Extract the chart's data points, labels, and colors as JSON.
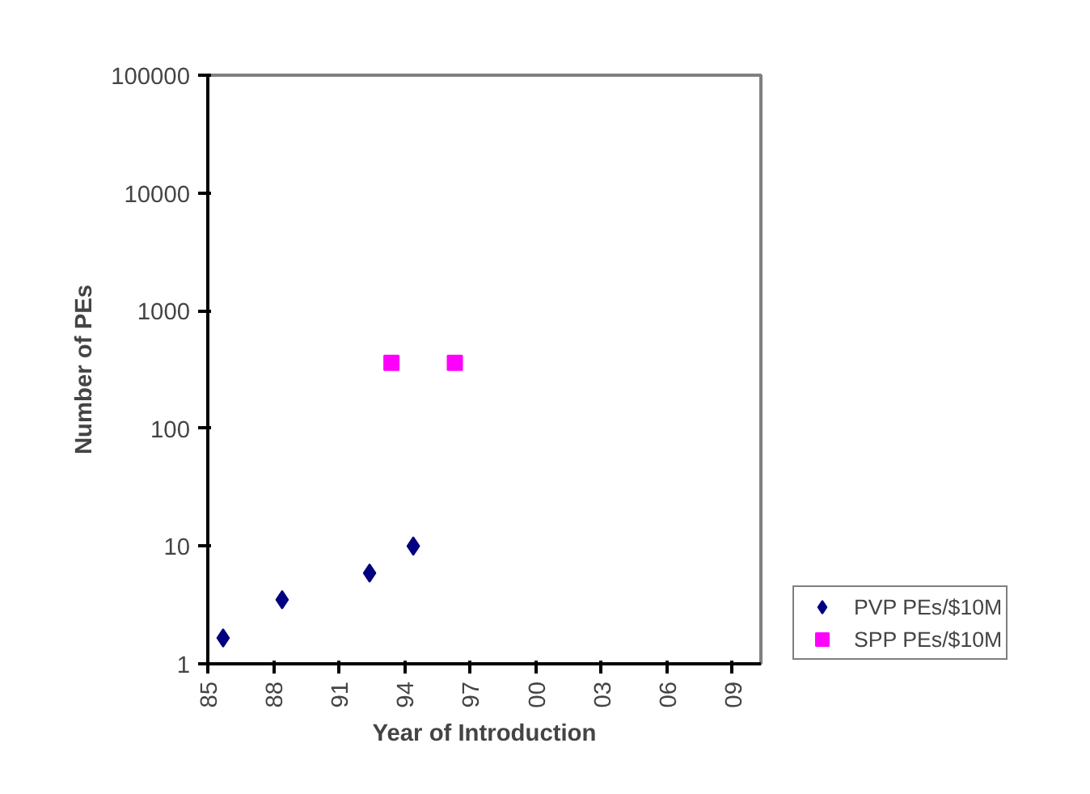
{
  "chart_data": {
    "type": "scatter",
    "xlabel": "Year of Introduction",
    "ylabel": "Number of PEs",
    "log": "y",
    "grid": false,
    "legend": "bottom right",
    "xlim": [
      1985,
      2010.3
    ],
    "ylim": [
      1,
      100000
    ],
    "xticks": [
      {
        "value": 1985,
        "label": "85"
      },
      {
        "value": 1988,
        "label": "88"
      },
      {
        "value": 1991,
        "label": "91"
      },
      {
        "value": 1994,
        "label": "94"
      },
      {
        "value": 1997,
        "label": "97"
      },
      {
        "value": 2000,
        "label": "00"
      },
      {
        "value": 2003,
        "label": "03"
      },
      {
        "value": 2006,
        "label": "06"
      },
      {
        "value": 2009,
        "label": "09"
      }
    ],
    "yticks": [
      1,
      10,
      100,
      1000,
      10000,
      100000
    ],
    "series": [
      {
        "name": "PVP PEs/$10M",
        "color": "#000080",
        "marker": "diamond",
        "x": [
          1985.7,
          1988.4,
          1992.4,
          1994.4
        ],
        "values": [
          1.66,
          3.5,
          5.9,
          10
        ]
      },
      {
        "name": "SPP PEs/$10M",
        "color": "#ff00ff",
        "marker": "square",
        "x": [
          1993.4,
          1996.3
        ],
        "values": [
          360,
          360
        ]
      }
    ]
  }
}
